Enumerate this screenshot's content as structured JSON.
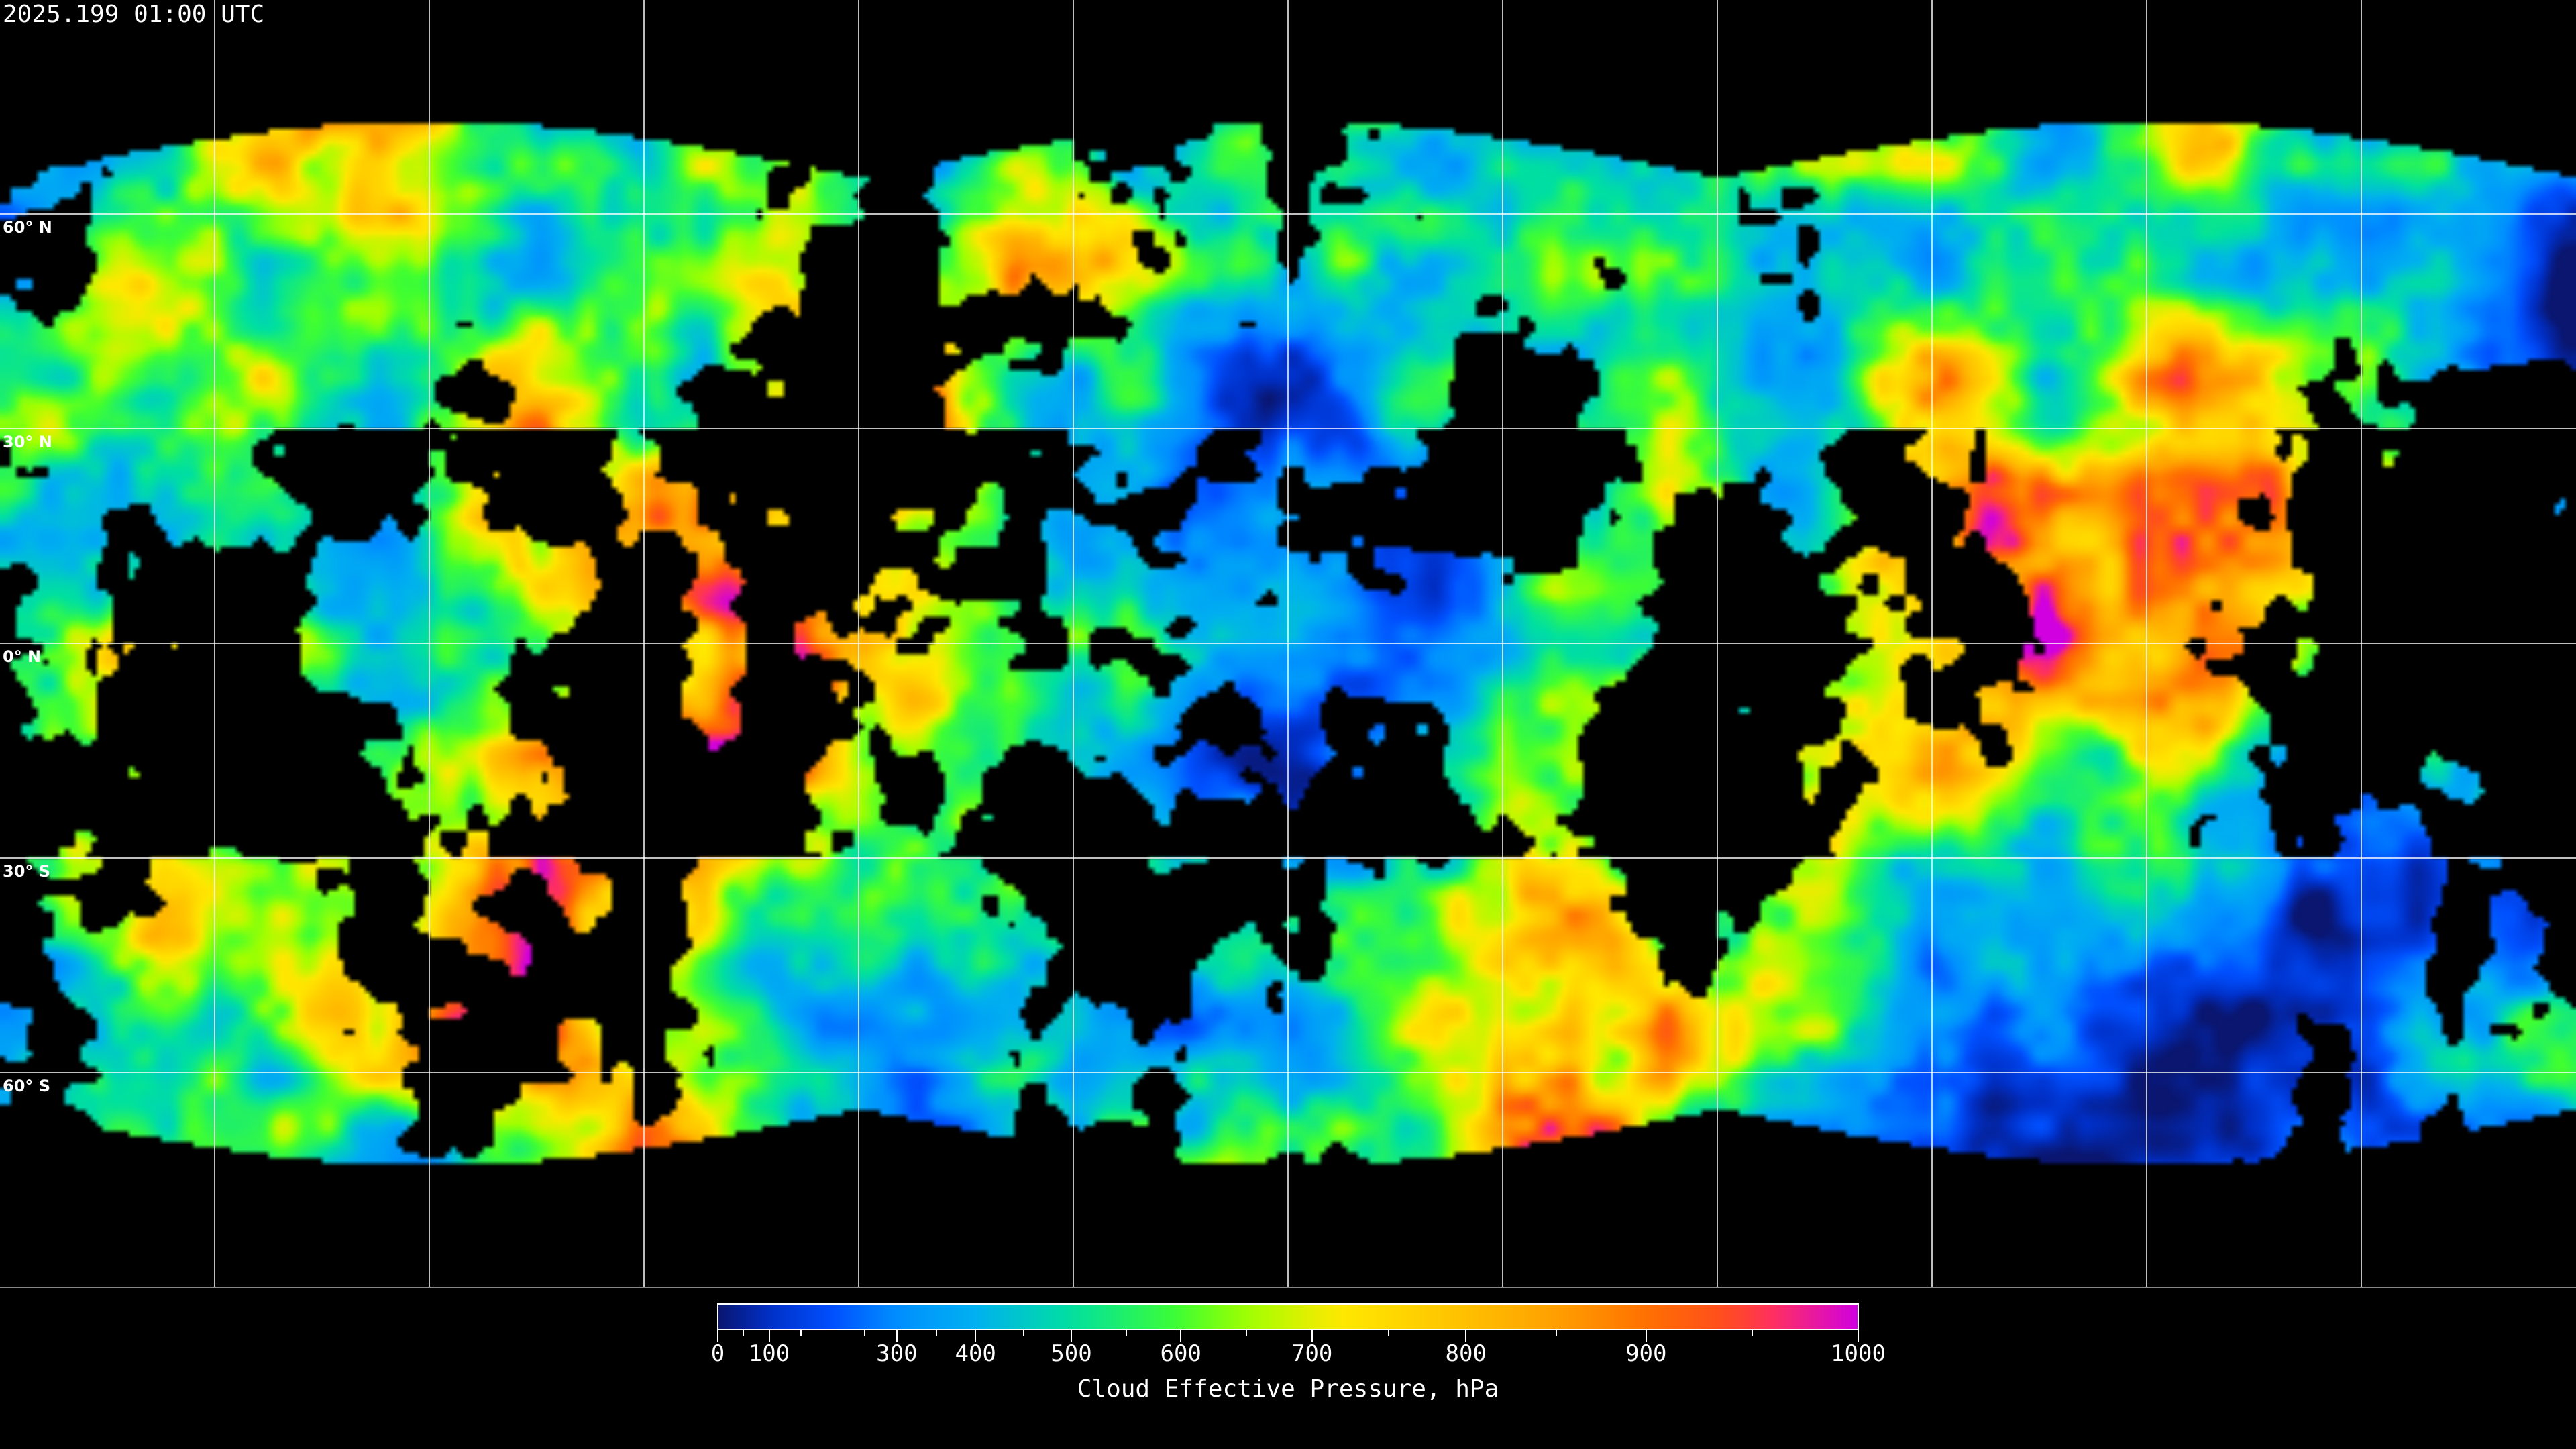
{
  "title": "2025.199 01:00 UTC",
  "map": {
    "latitude_labels": [
      {
        "lat": 60,
        "label": "60° N"
      },
      {
        "lat": 30,
        "label": "30° N"
      },
      {
        "lat": 0,
        "label": "0° N"
      },
      {
        "lat": -30,
        "label": "30° S"
      },
      {
        "lat": -60,
        "label": "60° S"
      }
    ],
    "grid_longitude_step_deg": 30,
    "grid_latitude_step_deg": 30,
    "clear_sky_color": "#000000",
    "gridline_color": "#ffffff"
  },
  "colorbar": {
    "title": "Cloud Effective Pressure, hPa",
    "range": [
      0,
      1000
    ],
    "major_ticks": [
      {
        "value": 0,
        "label": "0"
      },
      {
        "value": 100,
        "label": "100"
      },
      {
        "value": 300,
        "label": "300"
      },
      {
        "value": 400,
        "label": "400"
      },
      {
        "value": 500,
        "label": "500"
      },
      {
        "value": 600,
        "label": "600"
      },
      {
        "value": 700,
        "label": "700"
      },
      {
        "value": 800,
        "label": "800"
      },
      {
        "value": 900,
        "label": "900"
      },
      {
        "value": 1000,
        "label": "1000"
      }
    ],
    "minor_ticks": [
      50,
      150,
      250,
      350,
      450,
      550,
      650,
      750,
      850,
      950
    ],
    "colormap": [
      {
        "value": 0,
        "color": "#0a1670"
      },
      {
        "value": 100,
        "color": "#0030c8"
      },
      {
        "value": 200,
        "color": "#0050ff"
      },
      {
        "value": 300,
        "color": "#0090ff"
      },
      {
        "value": 400,
        "color": "#00b0f0"
      },
      {
        "value": 500,
        "color": "#00e0a0"
      },
      {
        "value": 600,
        "color": "#40ff30"
      },
      {
        "value": 650,
        "color": "#a0ff00"
      },
      {
        "value": 720,
        "color": "#ffe800"
      },
      {
        "value": 800,
        "color": "#ffc000"
      },
      {
        "value": 850,
        "color": "#ffa000"
      },
      {
        "value": 900,
        "color": "#ff7000"
      },
      {
        "value": 940,
        "color": "#ff4a20"
      },
      {
        "value": 960,
        "color": "#ff3060"
      },
      {
        "value": 1000,
        "color": "#d000e0"
      }
    ]
  }
}
